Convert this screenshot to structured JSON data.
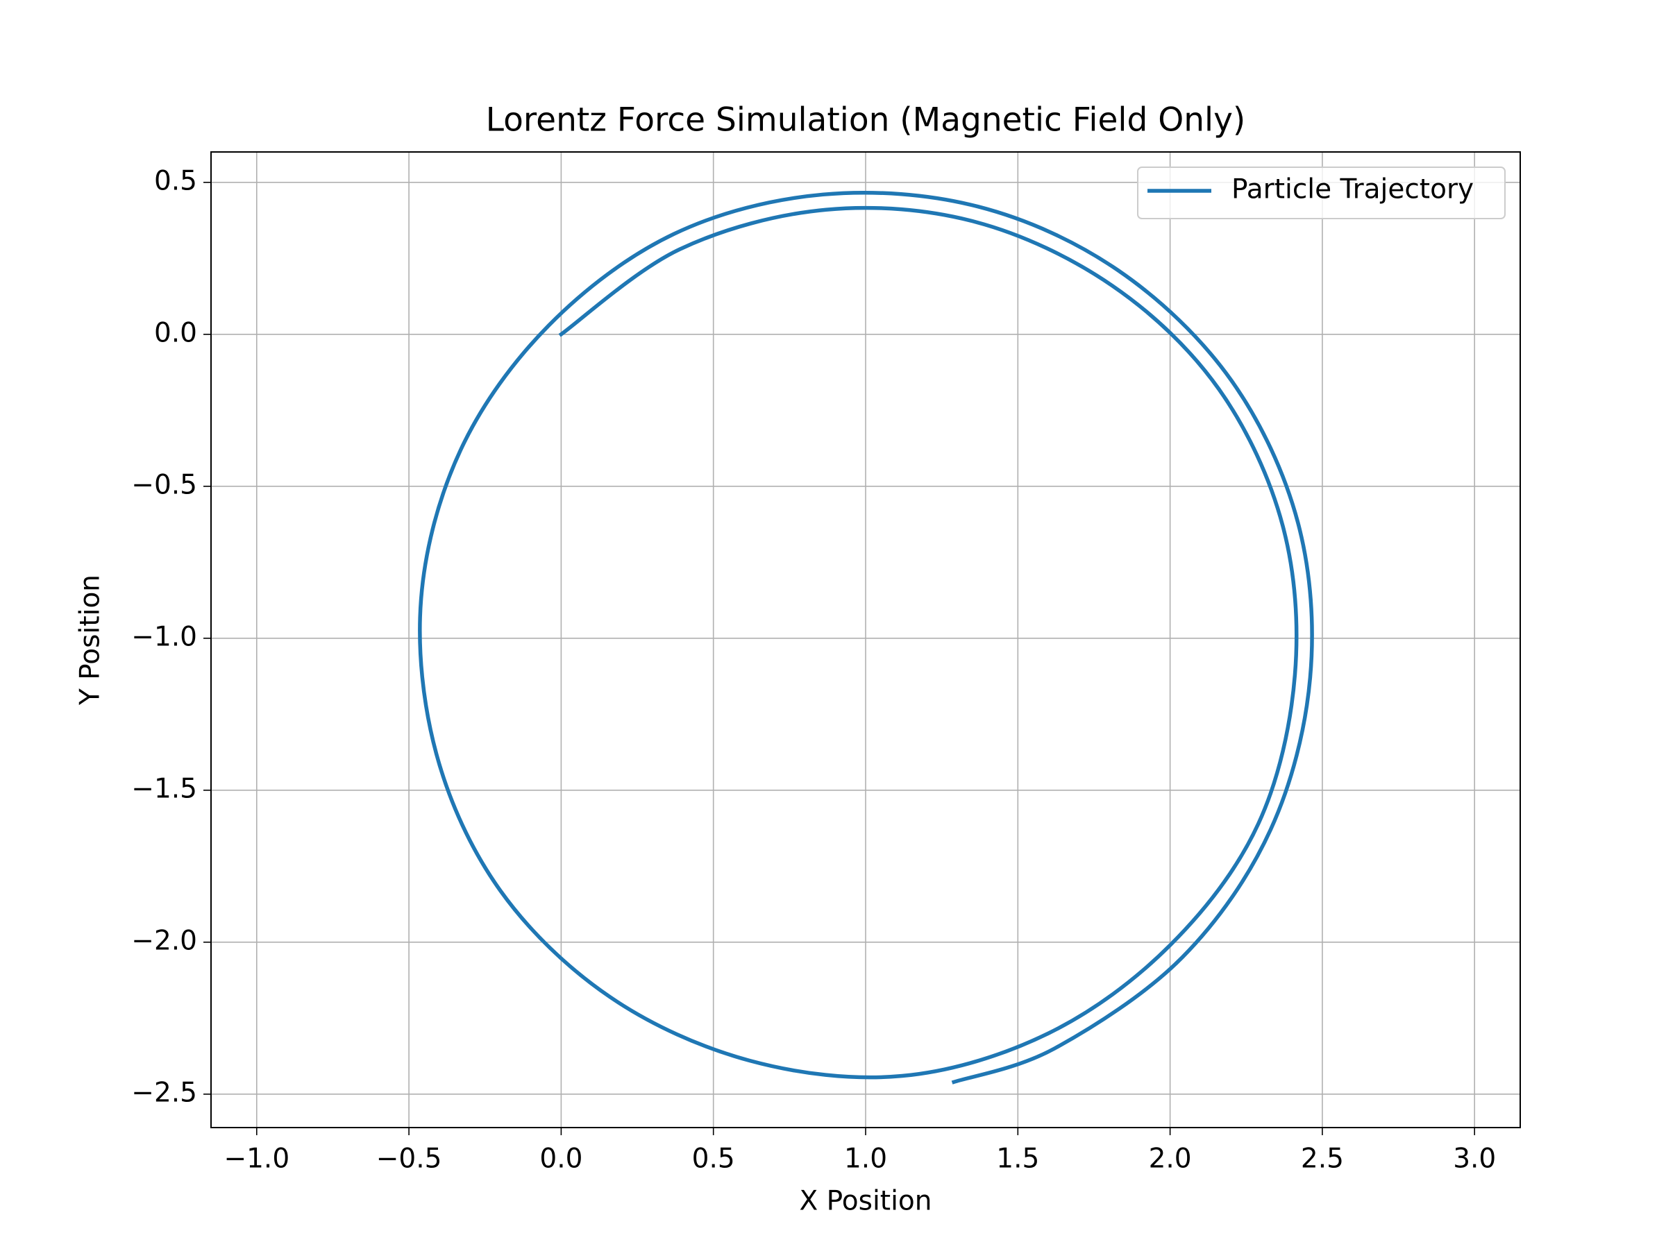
{
  "chart_data": {
    "type": "line",
    "title": "Lorentz Force Simulation (Magnetic Field Only)",
    "x_label": "X Position",
    "y_label": "Y Position",
    "series": [
      {
        "name": "Particle Trajectory",
        "color": "#1f77b4",
        "x": [
          0.0,
          0.39,
          0.87,
          1.36,
          1.81,
          2.16,
          2.37,
          2.41,
          2.29,
          2.0,
          1.6,
          1.12,
          0.62,
          0.16,
          -0.2,
          -0.41,
          -0.46,
          -0.33,
          -0.04,
          0.37,
          0.86,
          1.37,
          1.83,
          2.2,
          2.42,
          2.46,
          2.33,
          2.04,
          1.62,
          1.29
        ],
        "values": [
          0.0,
          0.28,
          0.41,
          0.37,
          0.16,
          -0.18,
          -0.63,
          -1.12,
          -1.61,
          -2.01,
          -2.3,
          -2.44,
          -2.39,
          -2.18,
          -1.83,
          -1.38,
          -0.87,
          -0.38,
          0.03,
          0.33,
          0.46,
          0.42,
          0.21,
          -0.15,
          -0.62,
          -1.13,
          -1.63,
          -2.05,
          -2.35,
          -2.46
        ]
      }
    ],
    "xlim": [
      -1.15,
      3.15
    ],
    "ylim": [
      -2.61,
      0.6
    ],
    "xticks": [
      {
        "value": -1,
        "label": "−1.0"
      },
      {
        "value": -0.5,
        "label": "−0.5"
      },
      {
        "value": 0,
        "label": "0.0"
      },
      0.5,
      {
        "value": 1,
        "label": "1.0"
      },
      1.5,
      {
        "value": 2,
        "label": "2.0"
      },
      2.5,
      {
        "value": 3,
        "label": "3.0"
      }
    ],
    "yticks": [
      0.5,
      {
        "value": 0,
        "label": "0.0"
      },
      {
        "value": -0.5,
        "label": "−0.5"
      },
      {
        "value": -1,
        "label": "−1.0"
      },
      {
        "value": -1.5,
        "label": "−1.5"
      },
      {
        "value": -2,
        "label": "−2.0"
      },
      {
        "value": -2.5,
        "label": "−2.5"
      }
    ],
    "grid": true,
    "legend_position": "upper right"
  }
}
